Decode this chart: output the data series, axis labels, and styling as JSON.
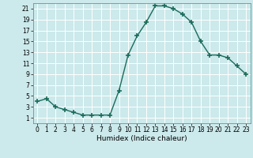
{
  "x": [
    0,
    1,
    2,
    3,
    4,
    5,
    6,
    7,
    8,
    9,
    10,
    11,
    12,
    13,
    14,
    15,
    16,
    17,
    18,
    19,
    20,
    21,
    22,
    23
  ],
  "y": [
    4,
    4.5,
    3,
    2.5,
    2,
    1.5,
    1.5,
    1.5,
    1.5,
    6,
    12.5,
    16,
    18.5,
    21.5,
    21.5,
    21,
    20,
    18.5,
    15,
    12.5,
    12.5,
    12,
    10.5,
    9
  ],
  "line_color": "#1a6b5a",
  "marker": "+",
  "marker_size": 4,
  "marker_lw": 1.2,
  "bg_color": "#cce9eb",
  "grid_color_major": "#b0d4d8",
  "grid_color_minor": "#ffffff",
  "xlabel": "Humidex (Indice chaleur)",
  "xlim": [
    -0.5,
    23.5
  ],
  "ylim": [
    0,
    22
  ],
  "yticks": [
    1,
    3,
    5,
    7,
    9,
    11,
    13,
    15,
    17,
    19,
    21
  ],
  "xticks": [
    0,
    1,
    2,
    3,
    4,
    5,
    6,
    7,
    8,
    9,
    10,
    11,
    12,
    13,
    14,
    15,
    16,
    17,
    18,
    19,
    20,
    21,
    22,
    23
  ],
  "tick_fontsize": 5.5,
  "xlabel_fontsize": 6.5,
  "line_width": 1.0
}
